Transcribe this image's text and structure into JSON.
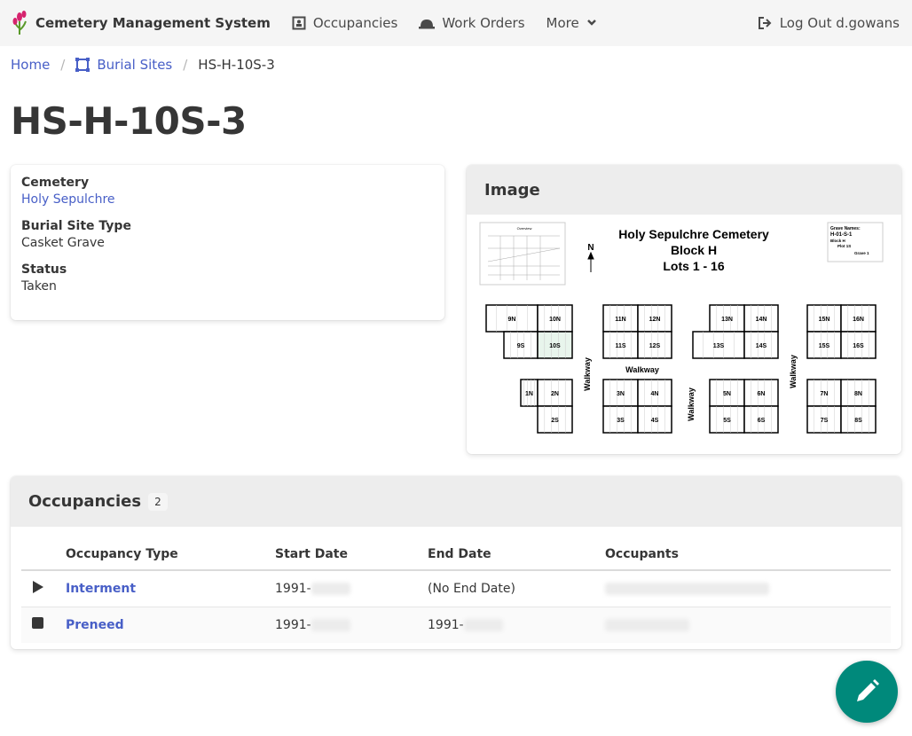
{
  "nav": {
    "brand": "Cemetery Management System",
    "items": [
      {
        "label": "Occupancies",
        "icon": "occupancy-icon"
      },
      {
        "label": "Work Orders",
        "icon": "hard-hat-icon"
      },
      {
        "label": "More",
        "icon": "chevron-down-icon"
      }
    ],
    "logout": "Log Out d.gowans"
  },
  "breadcrumb": {
    "home": "Home",
    "burial_sites": "Burial Sites",
    "current": "HS-H-10S-3"
  },
  "title": "HS-H-10S-3",
  "details": {
    "cemetery_label": "Cemetery",
    "cemetery": "Holy Sepulchre",
    "type_label": "Burial Site Type",
    "type": "Casket Grave",
    "status_label": "Status",
    "status": "Taken"
  },
  "image": {
    "header": "Image",
    "map_title": [
      "Holy Sepulchre Cemetery",
      "Block H",
      "Lots 1 - 16"
    ],
    "north": "N",
    "overview": "Overview",
    "legend": [
      "Grave Names:",
      "H-01-S-1",
      "Block H",
      "Plot 1S",
      "Grave 1"
    ],
    "walkway": "Walkway",
    "highlighted_lot": "10S",
    "lots": [
      "9N",
      "10N",
      "9S",
      "10S",
      "11N",
      "12N",
      "11S",
      "12S",
      "13N",
      "14N",
      "13S",
      "14S",
      "15N",
      "16N",
      "15S",
      "16S",
      "1N",
      "2N",
      "2S",
      "3N",
      "4N",
      "3S",
      "4S",
      "5N",
      "6N",
      "5S",
      "6S",
      "7N",
      "8N",
      "7S",
      "8S"
    ]
  },
  "occupancies": {
    "header": "Occupancies",
    "count": "2",
    "columns": [
      "Occupancy Type",
      "Start Date",
      "End Date",
      "Occupants"
    ],
    "rows": [
      {
        "icon": "play-icon",
        "type": "Interment",
        "start": "1991-",
        "end": "(No End Date)"
      },
      {
        "icon": "stop-icon",
        "type": "Preneed",
        "start": "1991-",
        "end": "1991-"
      }
    ]
  },
  "colors": {
    "link": "#485fc7",
    "fab": "#00897b",
    "highlight": "#e8f5ec"
  }
}
